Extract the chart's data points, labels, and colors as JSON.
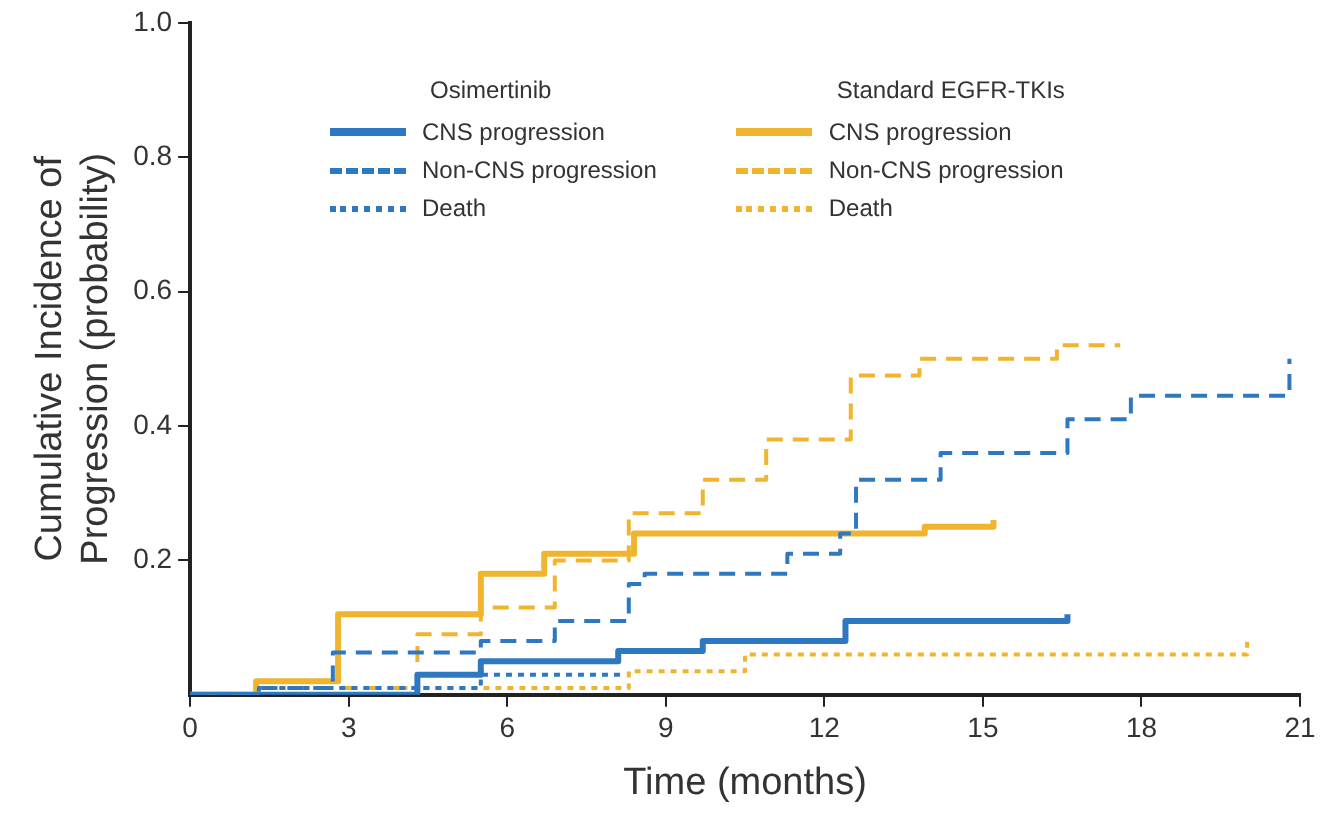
{
  "chart_data": {
    "type": "step",
    "xlabel": "Time (months)",
    "ylabel": "Cumulative Incidence of Progression (probability)",
    "legend_title": [
      "Osimertinib",
      "Standard EGFR-TKIs"
    ],
    "xlim": [
      0,
      21
    ],
    "xticks": [
      0,
      3,
      6,
      9,
      12,
      15,
      18,
      21
    ],
    "ylim": [
      0,
      1
    ],
    "yticks": [
      0.2,
      0.4,
      0.6,
      0.8,
      {
        "value": 1,
        "label": "1.0"
      }
    ],
    "grid": false,
    "legend": "top",
    "marker": "none",
    "series": [
      {
        "name": "CNS progression",
        "color": "#2e78c2",
        "line_style": "solid",
        "x": [
          0,
          4.3,
          5.5,
          8.1,
          9.7,
          12.4,
          16.6
        ],
        "values": [
          0,
          0.03,
          0.05,
          0.065,
          0.08,
          0.11,
          0.12
        ]
      },
      {
        "name": "Non-CNS progression",
        "color": "#2e78c2",
        "line_style": "dashed",
        "x": [
          0,
          1.3,
          2.7,
          5.5,
          6.9,
          8.3,
          8.6,
          11.3,
          12.3,
          12.6,
          14.2,
          16.6,
          17.8,
          20.8
        ],
        "values": [
          0,
          0.01,
          0.063,
          0.08,
          0.11,
          0.165,
          0.18,
          0.21,
          0.24,
          0.32,
          0.36,
          0.41,
          0.445,
          0.5
        ]
      },
      {
        "name": "Death",
        "color": "#2e78c2",
        "line_style": "dotted",
        "x": [
          0,
          1.3,
          5.5,
          8.2
        ],
        "values": [
          0,
          0.01,
          0.03,
          0.03
        ]
      },
      {
        "name": "CNS progression",
        "color": "#f0b42e",
        "line_style": "solid",
        "x": [
          0,
          1.25,
          2.8,
          5.5,
          6.7,
          8.4,
          13.9,
          15.2
        ],
        "values": [
          0,
          0.02,
          0.12,
          0.18,
          0.21,
          0.24,
          0.25,
          0.26
        ]
      },
      {
        "name": "Non-CNS progression",
        "color": "#f0b42e",
        "line_style": "dashed",
        "x": [
          0,
          1.3,
          4.3,
          5.5,
          6.9,
          8.3,
          9.7,
          10.9,
          12.5,
          13.8,
          16.4,
          17.6
        ],
        "values": [
          0,
          0.01,
          0.09,
          0.13,
          0.2,
          0.27,
          0.32,
          0.38,
          0.475,
          0.5,
          0.52,
          0.52
        ]
      },
      {
        "name": "Death",
        "color": "#f0b42e",
        "line_style": "dotted",
        "x": [
          0,
          1.3,
          8.3,
          10.5,
          20
        ],
        "values": [
          0,
          0.01,
          0.035,
          0.06,
          0.08
        ]
      }
    ]
  }
}
